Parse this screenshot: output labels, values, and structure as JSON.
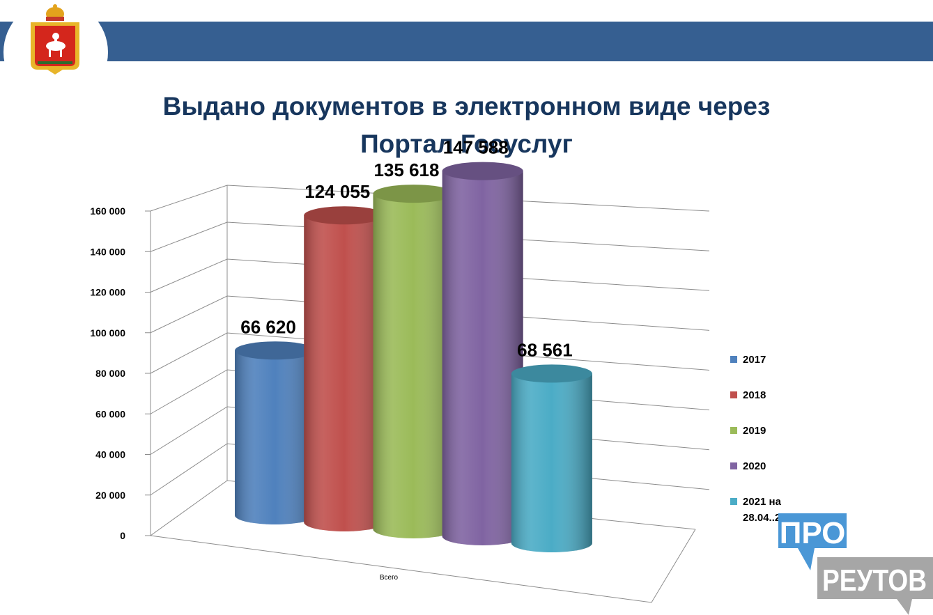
{
  "title_lines": [
    "Выдано документов в электронном виде через",
    "Портал Госуслуг"
  ],
  "chart_data": {
    "type": "bar",
    "categories": [
      "Всего"
    ],
    "series": [
      {
        "name": "2017",
        "values": [
          66620
        ],
        "label": "66 620",
        "color": "#4f81bd"
      },
      {
        "name": "2018",
        "values": [
          124055
        ],
        "label": "124 055",
        "color": "#c0504d"
      },
      {
        "name": "2019",
        "values": [
          135618
        ],
        "label": "135 618",
        "color": "#9bbb59"
      },
      {
        "name": "2020",
        "values": [
          147588
        ],
        "label": "147 588",
        "color": "#8064a2"
      },
      {
        "name": "2021 на 28.04..2021",
        "values": [
          68561
        ],
        "label": "68 561",
        "color": "#4bacc6"
      }
    ],
    "ylim": [
      0,
      160000
    ],
    "yticks": [
      "0",
      "20 000",
      "40 000",
      "60 000",
      "80 000",
      "100 000",
      "120 000",
      "140 000",
      "160 000"
    ],
    "xlabel": "",
    "ylabel": "",
    "grid": true,
    "legend_position": "right",
    "style": "3d-cylinder"
  },
  "logo": {
    "line1": "ПРО",
    "line2": "РЕУТОВ",
    "color": "#4a97d6",
    "color2": "#a6a6a6"
  }
}
